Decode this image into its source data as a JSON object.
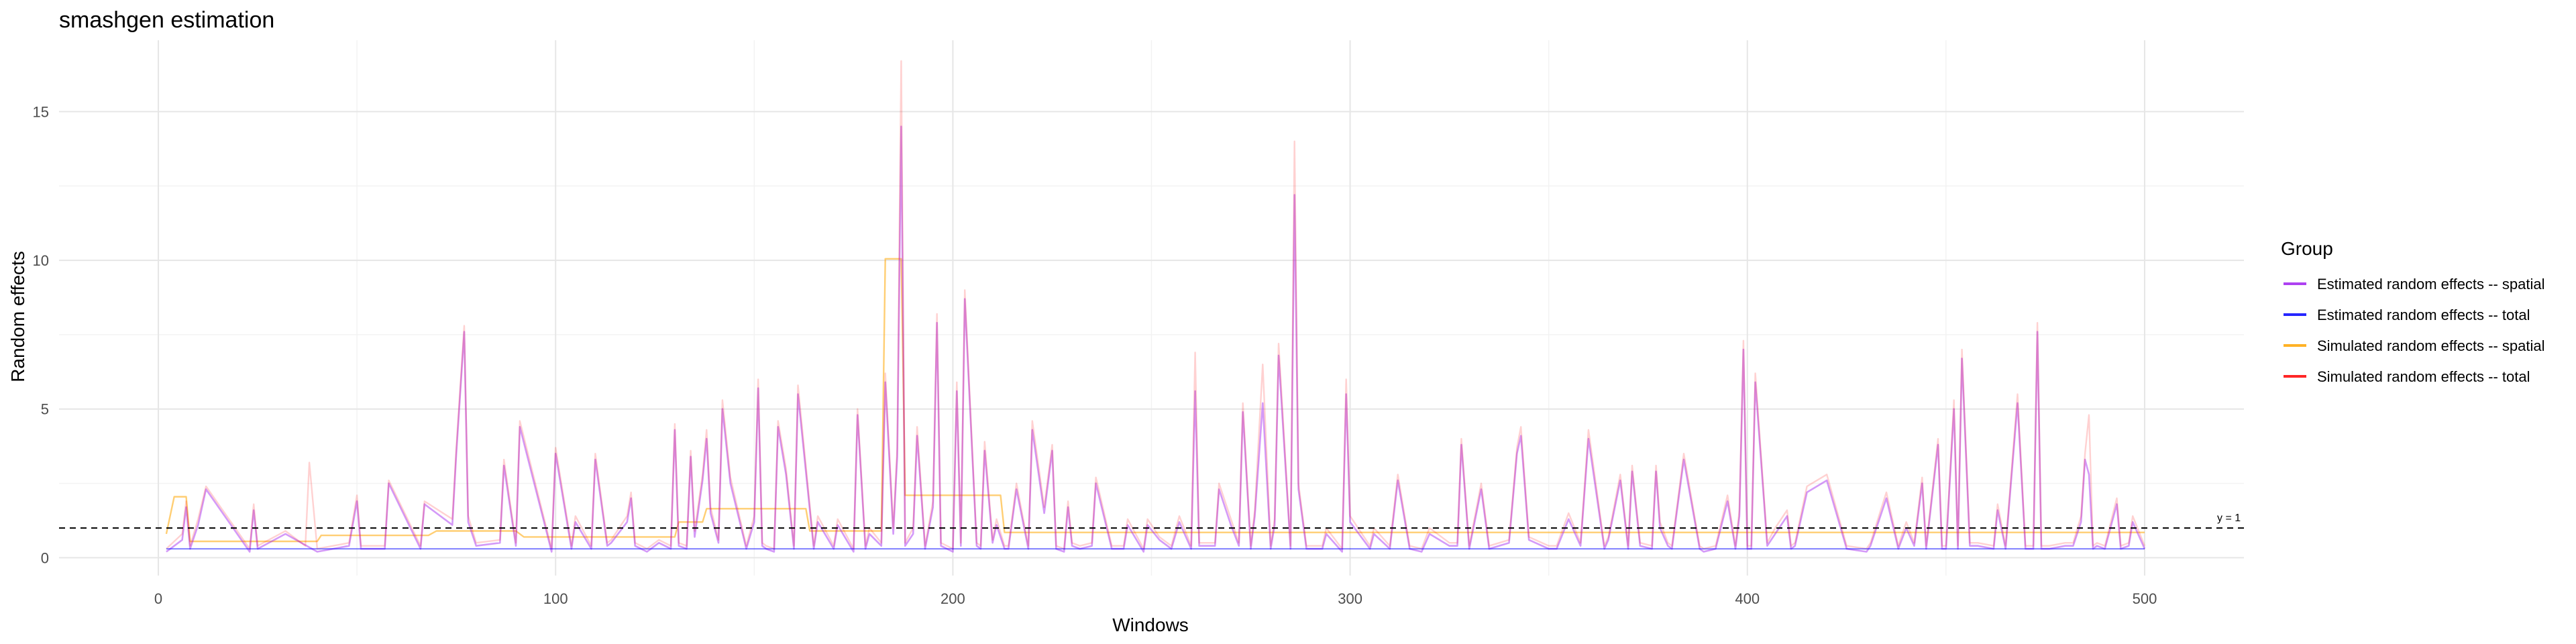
{
  "chart_data": {
    "type": "line",
    "title": "smashgen estimation",
    "xlabel": "Windows",
    "ylabel": "Random effects",
    "xlim": [
      -25,
      525
    ],
    "ylim": [
      -0.6,
      17.4
    ],
    "x_ticks": [
      0,
      100,
      200,
      300,
      400,
      500
    ],
    "y_ticks": [
      0,
      5,
      10,
      15
    ],
    "grid": true,
    "legend": {
      "title": "Group",
      "position": "right",
      "entries": [
        {
          "label": "Estimated random effects -- spatial",
          "color": "#a020f0"
        },
        {
          "label": "Estimated random effects -- total",
          "color": "#0000ff"
        },
        {
          "label": "Simulated random effects -- spatial",
          "color": "#ffa500"
        },
        {
          "label": "Simulated random effects -- total",
          "color": "#ff0000"
        }
      ]
    },
    "reference_line": {
      "y": 1,
      "label": "y = 1",
      "style": "dashed"
    },
    "series": [
      {
        "name": "Simulated random effects -- spatial",
        "color": "#ffa500",
        "x": [
          2,
          4,
          7,
          8,
          40,
          41,
          68,
          70,
          90,
          92,
          130,
          131,
          137,
          138,
          163,
          164,
          182,
          183,
          187,
          188,
          212,
          213,
          500
        ],
        "y": [
          0.8,
          2.05,
          2.05,
          0.55,
          0.55,
          0.75,
          0.75,
          0.9,
          0.9,
          0.7,
          0.7,
          1.2,
          1.2,
          1.65,
          1.65,
          0.9,
          0.9,
          10.05,
          10.05,
          2.1,
          2.1,
          0.85,
          0.85
        ]
      },
      {
        "name": "Estimated random effects -- spatial",
        "color": "#a020f0",
        "x": [
          2,
          6,
          7,
          8,
          10,
          12,
          23,
          24,
          25,
          32,
          40,
          48,
          50,
          51,
          57,
          58,
          66,
          67,
          74,
          75,
          77,
          78,
          80,
          86,
          87,
          90,
          91,
          99,
          100,
          104,
          105,
          109,
          110,
          113,
          114,
          118,
          119,
          120,
          123,
          126,
          129,
          130,
          131,
          133,
          134,
          135,
          137,
          138,
          139,
          141,
          142,
          144,
          148,
          150,
          151,
          152,
          153,
          155,
          156,
          158,
          160,
          161,
          165,
          166,
          170,
          171,
          175,
          176,
          178,
          179,
          182,
          183,
          185,
          186,
          187,
          188,
          190,
          191,
          193,
          195,
          196,
          197,
          200,
          201,
          202,
          203,
          206,
          207,
          208,
          210,
          211,
          213,
          214,
          216,
          219,
          220,
          223,
          225,
          226,
          228,
          229,
          230,
          232,
          235,
          236,
          240,
          243,
          244,
          248,
          249,
          252,
          255,
          257,
          260,
          261,
          262,
          266,
          267,
          270,
          272,
          273,
          275,
          276,
          278,
          280,
          281,
          282,
          285,
          286,
          287,
          289,
          293,
          294,
          298,
          299,
          300,
          305,
          306,
          310,
          312,
          315,
          318,
          320,
          325,
          327,
          328,
          330,
          333,
          335,
          340,
          342,
          343,
          345,
          350,
          352,
          355,
          358,
          360,
          364,
          365,
          368,
          370,
          371,
          373,
          376,
          377,
          378,
          380,
          381,
          384,
          388,
          389,
          392,
          395,
          397,
          398,
          399,
          400,
          401,
          402,
          405,
          407,
          410,
          411,
          412,
          415,
          420,
          425,
          430,
          431,
          435,
          438,
          440,
          442,
          444,
          445,
          448,
          449,
          450,
          452,
          453,
          454,
          456,
          458,
          462,
          463,
          465,
          468,
          470,
          472,
          473,
          474,
          476,
          480,
          482,
          484,
          485,
          486,
          487,
          488,
          490,
          493,
          494,
          496,
          497,
          500
        ],
        "y": [
          0.2,
          0.6,
          1.7,
          0.3,
          1.1,
          2.3,
          0.2,
          1.6,
          0.3,
          0.8,
          0.2,
          0.4,
          1.9,
          0.3,
          0.3,
          2.5,
          0.3,
          1.8,
          1.1,
          3.5,
          7.6,
          1.2,
          0.4,
          0.5,
          3.1,
          0.4,
          4.4,
          0.2,
          3.5,
          0.3,
          1.2,
          0.3,
          3.3,
          0.4,
          0.5,
          1.2,
          2.0,
          0.4,
          0.2,
          0.5,
          0.3,
          4.3,
          0.4,
          0.3,
          3.4,
          0.7,
          2.6,
          4.0,
          1.5,
          0.5,
          5.0,
          2.5,
          0.3,
          1.2,
          5.7,
          0.4,
          0.3,
          0.2,
          4.4,
          2.8,
          0.3,
          5.5,
          0.3,
          1.2,
          0.3,
          1.1,
          0.2,
          4.8,
          0.3,
          0.8,
          0.4,
          5.9,
          0.8,
          3.4,
          14.5,
          0.4,
          0.8,
          4.1,
          0.3,
          1.7,
          7.9,
          0.4,
          0.2,
          5.6,
          0.4,
          8.7,
          0.4,
          0.3,
          3.6,
          0.5,
          1.1,
          0.3,
          0.3,
          2.3,
          0.3,
          4.3,
          1.5,
          3.6,
          0.3,
          0.2,
          1.7,
          0.4,
          0.3,
          0.4,
          2.5,
          0.3,
          0.3,
          1.1,
          0.2,
          1.1,
          0.6,
          0.3,
          1.2,
          0.3,
          5.6,
          0.4,
          0.4,
          2.3,
          1.1,
          0.4,
          4.9,
          0.3,
          1.4,
          5.2,
          0.3,
          1.1,
          6.8,
          0.3,
          12.2,
          2.3,
          0.3,
          0.3,
          0.8,
          0.2,
          5.5,
          1.2,
          0.3,
          0.8,
          0.3,
          2.6,
          0.3,
          0.2,
          0.8,
          0.4,
          0.4,
          3.8,
          0.3,
          2.3,
          0.3,
          0.5,
          3.5,
          4.1,
          0.6,
          0.3,
          0.3,
          1.3,
          0.4,
          4.0,
          0.3,
          0.6,
          2.6,
          0.3,
          2.9,
          0.4,
          0.3,
          2.9,
          1.0,
          0.4,
          0.3,
          3.3,
          0.3,
          0.2,
          0.3,
          1.9,
          0.3,
          1.4,
          7.0,
          0.3,
          0.3,
          5.9,
          0.4,
          0.8,
          1.4,
          0.3,
          0.4,
          2.2,
          2.6,
          0.3,
          0.2,
          0.4,
          2.0,
          0.3,
          1.0,
          0.4,
          2.5,
          0.3,
          3.8,
          0.3,
          0.3,
          5.0,
          0.3,
          6.7,
          0.4,
          0.4,
          0.3,
          1.6,
          0.3,
          5.2,
          0.3,
          0.3,
          7.6,
          0.3,
          0.3,
          0.4,
          0.4,
          1.2,
          3.3,
          2.8,
          0.3,
          0.4,
          0.3,
          1.8,
          0.3,
          0.4,
          1.2,
          0.3
        ]
      },
      {
        "name": "Simulated random effects -- total",
        "color": "#ff0000",
        "x": [
          2,
          6,
          7,
          8,
          10,
          12,
          23,
          24,
          25,
          32,
          37,
          38,
          40,
          48,
          50,
          51,
          57,
          58,
          66,
          67,
          74,
          75,
          77,
          78,
          80,
          86,
          87,
          90,
          91,
          99,
          100,
          104,
          105,
          109,
          110,
          113,
          114,
          118,
          119,
          120,
          123,
          126,
          129,
          130,
          131,
          133,
          134,
          135,
          137,
          138,
          139,
          141,
          142,
          144,
          148,
          150,
          151,
          152,
          153,
          155,
          156,
          158,
          160,
          161,
          165,
          166,
          170,
          171,
          175,
          176,
          178,
          179,
          182,
          183,
          185,
          186,
          187,
          188,
          190,
          191,
          193,
          195,
          196,
          197,
          200,
          201,
          202,
          203,
          206,
          207,
          208,
          210,
          211,
          213,
          214,
          216,
          219,
          220,
          223,
          225,
          226,
          228,
          229,
          230,
          232,
          235,
          236,
          240,
          243,
          244,
          248,
          249,
          252,
          255,
          257,
          260,
          261,
          262,
          266,
          267,
          270,
          272,
          273,
          275,
          276,
          278,
          280,
          281,
          282,
          285,
          286,
          287,
          289,
          293,
          294,
          298,
          299,
          300,
          305,
          306,
          310,
          312,
          315,
          318,
          320,
          325,
          327,
          328,
          330,
          333,
          335,
          340,
          342,
          343,
          345,
          350,
          352,
          355,
          358,
          360,
          364,
          365,
          368,
          370,
          371,
          373,
          376,
          377,
          378,
          380,
          381,
          384,
          388,
          389,
          392,
          395,
          397,
          398,
          399,
          400,
          401,
          402,
          405,
          407,
          410,
          411,
          412,
          415,
          420,
          425,
          430,
          431,
          435,
          438,
          440,
          442,
          444,
          445,
          448,
          449,
          450,
          452,
          453,
          454,
          456,
          458,
          462,
          463,
          465,
          468,
          470,
          472,
          473,
          474,
          476,
          480,
          482,
          484,
          485,
          486,
          487,
          488,
          490,
          493,
          494,
          496,
          497,
          500
        ],
        "y": [
          0.3,
          0.8,
          1.9,
          0.4,
          1.3,
          2.4,
          0.3,
          1.8,
          0.4,
          0.9,
          0.4,
          3.2,
          0.3,
          0.5,
          2.1,
          0.4,
          0.4,
          2.6,
          0.4,
          1.9,
          1.3,
          3.7,
          7.8,
          1.4,
          0.5,
          0.6,
          3.3,
          0.5,
          4.6,
          0.3,
          3.7,
          0.4,
          1.4,
          0.4,
          3.5,
          0.5,
          0.6,
          1.4,
          2.2,
          0.5,
          0.3,
          0.6,
          0.4,
          4.5,
          0.5,
          0.4,
          3.6,
          0.9,
          2.8,
          4.3,
          1.7,
          0.6,
          5.3,
          2.7,
          0.4,
          1.4,
          6.0,
          0.5,
          0.4,
          0.3,
          4.6,
          3.0,
          0.4,
          5.8,
          0.4,
          1.4,
          0.4,
          1.3,
          0.3,
          5.0,
          0.4,
          1.0,
          0.5,
          6.2,
          1.0,
          3.7,
          16.7,
          0.5,
          1.0,
          4.4,
          0.4,
          1.9,
          8.2,
          0.5,
          0.3,
          5.9,
          0.5,
          9.0,
          0.5,
          0.4,
          3.9,
          0.6,
          1.3,
          0.4,
          0.4,
          2.5,
          0.4,
          4.6,
          1.7,
          3.8,
          0.4,
          0.3,
          1.9,
          0.5,
          0.4,
          0.5,
          2.7,
          0.4,
          0.4,
          1.3,
          0.3,
          1.3,
          0.7,
          0.4,
          1.4,
          0.4,
          6.9,
          0.5,
          0.5,
          2.5,
          1.3,
          0.5,
          5.2,
          0.4,
          1.6,
          6.5,
          0.4,
          1.3,
          7.2,
          0.4,
          14.0,
          2.5,
          0.4,
          0.4,
          1.0,
          0.3,
          6.0,
          1.4,
          0.4,
          1.0,
          0.4,
          2.8,
          0.4,
          0.3,
          1.0,
          0.5,
          0.5,
          4.0,
          0.4,
          2.5,
          0.4,
          0.6,
          3.7,
          4.4,
          0.7,
          0.4,
          0.4,
          1.5,
          0.5,
          4.3,
          0.4,
          0.7,
          2.8,
          0.4,
          3.1,
          0.5,
          0.4,
          3.1,
          1.2,
          0.5,
          0.4,
          3.5,
          0.4,
          0.3,
          0.4,
          2.1,
          0.4,
          1.6,
          7.3,
          0.4,
          0.4,
          6.2,
          0.5,
          1.0,
          1.6,
          0.4,
          0.5,
          2.4,
          2.8,
          0.4,
          0.3,
          0.5,
          2.2,
          0.4,
          1.2,
          0.5,
          2.7,
          0.4,
          4.0,
          0.4,
          0.4,
          5.3,
          0.4,
          7.0,
          0.5,
          0.5,
          0.4,
          1.8,
          0.4,
          5.5,
          0.4,
          0.4,
          7.9,
          0.4,
          0.4,
          0.5,
          0.5,
          1.4,
          3.5,
          4.8,
          0.4,
          0.5,
          0.4,
          2.0,
          0.4,
          0.5,
          1.4,
          0.4
        ]
      },
      {
        "name": "Estimated random effects -- total",
        "color": "#0000ff",
        "x": [
          2,
          500
        ],
        "y": [
          0.3,
          0.3
        ]
      }
    ]
  }
}
